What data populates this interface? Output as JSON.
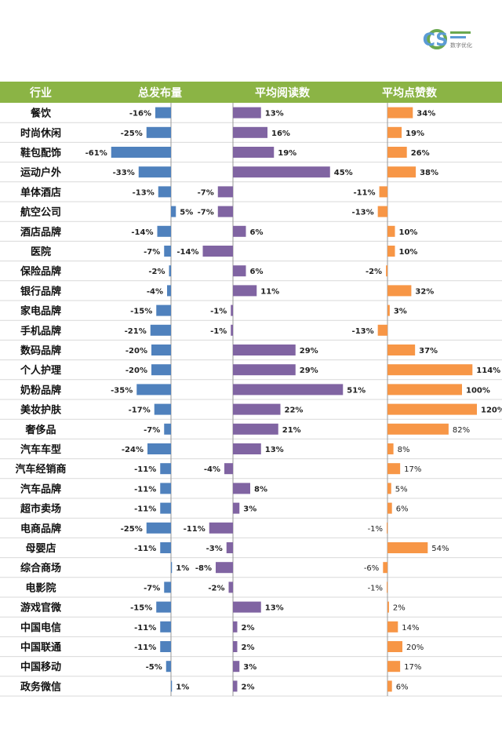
{
  "logo": {
    "letters": "CS",
    "tagline": "数字优化"
  },
  "chart_data": {
    "type": "bar",
    "headers": [
      "行业",
      "总发布量",
      "平均阅读数",
      "平均点赞数"
    ],
    "categories": [
      "餐饮",
      "时尚休闲",
      "鞋包配饰",
      "运动户外",
      "单体酒店",
      "航空公司",
      "酒店品牌",
      "医院",
      "保险品牌",
      "银行品牌",
      "家电品牌",
      "手机品牌",
      "数码品牌",
      "个人护理",
      "奶粉品牌",
      "美妆护肤",
      "奢侈品",
      "汽车车型",
      "汽车经销商",
      "汽车品牌",
      "超市卖场",
      "电商品牌",
      "母婴店",
      "综合商场",
      "电影院",
      "游戏官微",
      "中国电信",
      "中国联通",
      "中国移动",
      "政务微信"
    ],
    "series": [
      {
        "name": "总发布量",
        "color": "#4f81bd",
        "values": [
          -16,
          -25,
          -61,
          -33,
          -13,
          5,
          -14,
          -7,
          -2,
          -4,
          -15,
          -21,
          -20,
          -20,
          -35,
          -17,
          -7,
          -24,
          -11,
          -11,
          -11,
          -25,
          -11,
          1,
          -7,
          -15,
          -11,
          -11,
          -5,
          1
        ]
      },
      {
        "name": "平均阅读数",
        "color": "#8064a2",
        "values": [
          13,
          16,
          19,
          45,
          -7,
          -7,
          6,
          -14,
          6,
          11,
          -1,
          -1,
          29,
          29,
          51,
          22,
          21,
          13,
          -4,
          8,
          3,
          -11,
          -3,
          -8,
          -2,
          13,
          2,
          2,
          3,
          2
        ]
      },
      {
        "name": "平均点赞数",
        "color": "#f79646",
        "values": [
          34,
          19,
          26,
          38,
          -11,
          -13,
          10,
          10,
          -2,
          32,
          3,
          -13,
          37,
          114,
          100,
          120,
          82,
          8,
          17,
          5,
          6,
          -1,
          54,
          -6,
          -1,
          2,
          14,
          20,
          17,
          6
        ]
      }
    ],
    "unit": "%",
    "header_color": "#8bb445"
  }
}
